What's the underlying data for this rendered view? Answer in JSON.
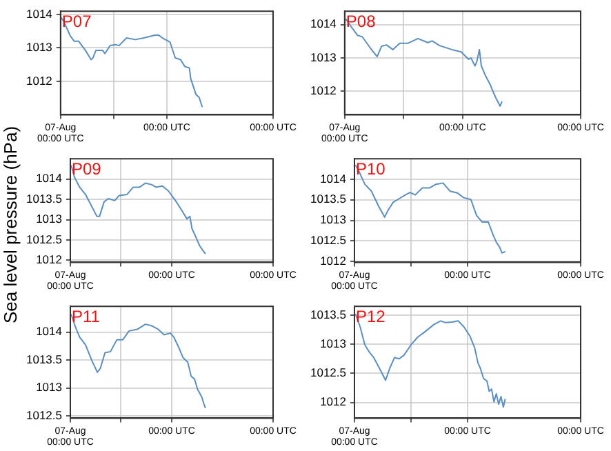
{
  "chart_data": [
    {
      "type": "line",
      "title": "P07",
      "color": "#5b8fc0",
      "grid": true,
      "xlim": [
        "--08-07T00:00",
        "--08-09T00:00"
      ],
      "ylim": [
        1011,
        1014.1
      ],
      "xticks": [
        {
          "value": "--08-07T00:00",
          "label": "07-Aug\n00:00 UTC"
        },
        {
          "value": "--08-07T12:00",
          "label": null
        },
        {
          "value": "--08-08T00:00",
          "label": "00:00 UTC"
        },
        {
          "value": "--08-09T00:00",
          "label": "00:00 UTC"
        }
      ],
      "yticks": [
        1012,
        1013,
        1014
      ],
      "x": [
        "--08-07T00:00",
        "--08-07T00:42",
        "--08-07T02:12",
        "--08-07T03:06",
        "--08-07T04:06",
        "--08-07T05:36",
        "--08-07T06:54",
        "--08-07T07:18",
        "--08-07T08:00",
        "--08-07T09:30",
        "--08-07T10:00",
        "--08-07T11:12",
        "--08-07T12:24",
        "--08-07T13:12",
        "--08-07T14:54",
        "--08-07T16:54",
        "--08-07T18:48",
        "--08-07T21:18",
        "--08-07T22:12",
        "--08-07T23:12",
        "--08-08T00:42",
        "--08-08T01:54",
        "--08-08T03:06",
        "--08-08T04:06",
        "--08-08T05:06",
        "--08-08T05:24",
        "--08-08T06:06",
        "--08-08T06:36",
        "--08-08T07:18",
        "--08-08T08:00"
      ],
      "values": [
        1013.93,
        1013.8,
        1013.36,
        1013.2,
        1013.2,
        1012.93,
        1012.65,
        1012.7,
        1012.93,
        1012.93,
        1012.83,
        1013.07,
        1013.1,
        1013.07,
        1013.3,
        1013.25,
        1013.3,
        1013.38,
        1013.38,
        1013.28,
        1013.18,
        1012.7,
        1012.65,
        1012.44,
        1012.4,
        1012.08,
        1011.8,
        1011.6,
        1011.52,
        1011.23
      ]
    },
    {
      "type": "line",
      "title": "P08",
      "color": "#5b8fc0",
      "grid": true,
      "xlim": [
        "--08-07T00:00",
        "--08-09T00:00"
      ],
      "ylim": [
        1011.3,
        1014.4
      ],
      "xticks": [
        {
          "value": "--08-07T00:00",
          "label": "07-Aug\n00:00 UTC"
        },
        {
          "value": "--08-07T12:00",
          "label": null
        },
        {
          "value": "--08-08T00:00",
          "label": "00:00 UTC"
        },
        {
          "value": "--08-09T00:00",
          "label": "00:00 UTC"
        }
      ],
      "yticks": [
        1012,
        1013,
        1014
      ],
      "x": [
        "--08-07T00:12",
        "--08-07T01:12",
        "--08-07T02:36",
        "--08-07T03:36",
        "--08-07T05:06",
        "--08-07T06:36",
        "--08-07T07:30",
        "--08-07T08:30",
        "--08-07T09:48",
        "--08-07T11:12",
        "--08-07T12:54",
        "--08-07T14:54",
        "--08-07T16:54",
        "--08-07T17:48",
        "--08-07T19:18",
        "--08-07T21:48",
        "--08-07T23:42",
        "--08-08T01:12",
        "--08-08T01:42",
        "--08-08T02:30",
        "--08-08T02:54",
        "--08-08T03:24",
        "--08-08T03:48",
        "--08-08T04:36",
        "--08-08T05:36",
        "--08-08T06:36",
        "--08-08T07:36",
        "--08-08T08:00"
      ],
      "values": [
        1014.17,
        1013.96,
        1013.68,
        1013.63,
        1013.32,
        1013.04,
        1013.35,
        1013.39,
        1013.25,
        1013.44,
        1013.44,
        1013.58,
        1013.46,
        1013.51,
        1013.37,
        1013.25,
        1013.18,
        1012.96,
        1013.0,
        1012.76,
        1012.9,
        1013.25,
        1012.76,
        1012.48,
        1012.2,
        1011.85,
        1011.56,
        1011.7
      ]
    },
    {
      "type": "line",
      "title": "P09",
      "ylabel": "Sea level pressure (hPa)",
      "color": "#5b8fc0",
      "grid": true,
      "xlim": [
        "--08-07T00:00",
        "--08-09T00:00"
      ],
      "ylim": [
        1011.95,
        1014.5
      ],
      "xticks": [
        {
          "value": "--08-07T00:00",
          "label": "07-Aug\n00:00 UTC"
        },
        {
          "value": "--08-07T12:00",
          "label": null
        },
        {
          "value": "--08-08T00:00",
          "label": "00:00 UTC"
        },
        {
          "value": "--08-09T00:00",
          "label": "00:00 UTC"
        }
      ],
      "yticks": [
        1012,
        1012.5,
        1013,
        1013.5,
        1014
      ],
      "x": [
        "--08-07T00:12",
        "--08-07T01:00",
        "--08-07T02:12",
        "--08-07T03:36",
        "--08-07T05:06",
        "--08-07T06:18",
        "--08-07T06:54",
        "--08-07T08:00",
        "--08-07T09:00",
        "--08-07T10:30",
        "--08-07T11:30",
        "--08-07T13:24",
        "--08-07T14:54",
        "--08-07T16:24",
        "--08-07T17:48",
        "--08-07T19:18",
        "--08-07T20:18",
        "--08-07T21:48",
        "--08-07T23:12",
        "--08-08T00:42",
        "--08-08T02:12",
        "--08-08T03:36",
        "--08-08T04:18",
        "--08-08T04:48",
        "--08-08T05:36",
        "--08-08T06:36",
        "--08-08T07:24",
        "--08-08T08:00"
      ],
      "values": [
        1014.34,
        1014.04,
        1013.8,
        1013.62,
        1013.32,
        1013.08,
        1013.08,
        1013.44,
        1013.52,
        1013.47,
        1013.59,
        1013.62,
        1013.8,
        1013.8,
        1013.9,
        1013.86,
        1013.8,
        1013.83,
        1013.71,
        1013.5,
        1013.26,
        1013.02,
        1013.08,
        1012.78,
        1012.6,
        1012.36,
        1012.24,
        1012.16
      ]
    },
    {
      "type": "line",
      "title": "P10",
      "color": "#5b8fc0",
      "grid": true,
      "xlim": [
        "--08-07T00:00",
        "--08-09T00:00"
      ],
      "ylim": [
        1011.98,
        1014.5
      ],
      "xticks": [
        {
          "value": "--08-07T00:00",
          "label": "07-Aug\n00:00 UTC"
        },
        {
          "value": "--08-07T12:00",
          "label": null
        },
        {
          "value": "--08-08T00:00",
          "label": "00:00 UTC"
        },
        {
          "value": "--08-09T00:00",
          "label": "00:00 UTC"
        }
      ],
      "yticks": [
        1012,
        1012.5,
        1013,
        1013.5,
        1014
      ],
      "x": [
        "--08-07T00:12",
        "--08-07T01:00",
        "--08-07T02:12",
        "--08-07T03:36",
        "--08-07T05:06",
        "--08-07T06:24",
        "--08-07T07:06",
        "--08-07T08:12",
        "--08-07T09:30",
        "--08-07T10:48",
        "--08-07T11:48",
        "--08-07T12:54",
        "--08-07T14:24",
        "--08-07T15:54",
        "--08-07T17:18",
        "--08-07T18:48",
        "--08-07T20:18",
        "--08-07T21:48",
        "--08-07T23:12",
        "--08-08T00:42",
        "--08-08T01:54",
        "--08-08T03:06",
        "--08-08T04:24",
        "--08-08T05:24",
        "--08-08T06:06",
        "--08-08T06:48",
        "--08-08T07:18",
        "--08-08T08:00"
      ],
      "values": [
        1014.35,
        1014.18,
        1013.88,
        1013.71,
        1013.35,
        1013.08,
        1013.24,
        1013.44,
        1013.53,
        1013.62,
        1013.68,
        1013.62,
        1013.79,
        1013.79,
        1013.88,
        1013.91,
        1013.71,
        1013.67,
        1013.55,
        1013.51,
        1013.12,
        1012.96,
        1012.96,
        1012.65,
        1012.47,
        1012.35,
        1012.21,
        1012.24
      ]
    },
    {
      "type": "line",
      "title": "P11",
      "color": "#5b8fc0",
      "grid": true,
      "xlim": [
        "--08-07T00:00",
        "--08-09T00:00"
      ],
      "ylim": [
        1012.46,
        1014.46
      ],
      "xticks": [
        {
          "value": "--08-07T00:00",
          "label": "07-Aug\n00:00 UTC"
        },
        {
          "value": "--08-07T12:00",
          "label": null
        },
        {
          "value": "--08-08T00:00",
          "label": "00:00 UTC"
        },
        {
          "value": "--08-09T00:00",
          "label": "00:00 UTC"
        }
      ],
      "yticks": [
        1012.5,
        1013,
        1013.5,
        1014
      ],
      "x": [
        "--08-07T00:12",
        "--08-07T01:12",
        "--08-07T02:12",
        "--08-07T03:36",
        "--08-07T05:06",
        "--08-07T06:24",
        "--08-07T07:06",
        "--08-07T08:12",
        "--08-07T09:30",
        "--08-07T11:00",
        "--08-07T12:24",
        "--08-07T13:54",
        "--08-07T15:54",
        "--08-07T17:48",
        "--08-07T19:18",
        "--08-07T20:48",
        "--08-07T22:12",
        "--08-07T23:42",
        "--08-08T00:30",
        "--08-08T01:42",
        "--08-08T02:42",
        "--08-08T03:48",
        "--08-08T04:36",
        "--08-08T05:24",
        "--08-08T06:06",
        "--08-08T07:06",
        "--08-08T07:36",
        "--08-08T08:00"
      ],
      "values": [
        1014.32,
        1014.09,
        1013.91,
        1013.77,
        1013.49,
        1013.28,
        1013.35,
        1013.63,
        1013.65,
        1013.86,
        1013.86,
        1014.02,
        1014.05,
        1014.14,
        1014.11,
        1014.05,
        1013.95,
        1013.98,
        1013.91,
        1013.72,
        1013.54,
        1013.46,
        1013.21,
        1013.16,
        1012.98,
        1012.84,
        1012.72,
        1012.64
      ]
    },
    {
      "type": "line",
      "title": "P12",
      "color": "#5b8fc0",
      "grid": true,
      "xlim": [
        "--08-07T00:00",
        "--08-09T00:00"
      ],
      "ylim": [
        1011.73,
        1013.65
      ],
      "xticks": [
        {
          "value": "--08-07T00:00",
          "label": "07-Aug\n00:00 UTC"
        },
        {
          "value": "--08-07T12:00",
          "label": null
        },
        {
          "value": "--08-08T00:00",
          "label": "00:00 UTC"
        },
        {
          "value": "--08-09T00:00",
          "label": "00:00 UTC"
        }
      ],
      "yticks": [
        1012,
        1012.5,
        1013,
        1013.5
      ],
      "x": [
        "--08-07T00:12",
        "--08-07T01:12",
        "--08-07T02:12",
        "--08-07T03:06",
        "--08-07T04:06",
        "--08-07T05:36",
        "--08-07T06:36",
        "--08-07T07:30",
        "--08-07T08:30",
        "--08-07T09:30",
        "--08-07T10:30",
        "--08-07T12:00",
        "--08-07T13:24",
        "--08-07T14:54",
        "--08-07T16:54",
        "--08-07T18:18",
        "--08-07T19:18",
        "--08-07T20:48",
        "--08-07T22:00",
        "--08-07T23:12",
        "--08-08T00:30",
        "--08-08T01:30",
        "--08-08T02:12",
        "--08-08T02:42",
        "--08-08T03:24",
        "--08-08T04:06",
        "--08-08T04:36",
        "--08-08T05:06",
        "--08-08T05:36",
        "--08-08T06:06",
        "--08-08T06:36",
        "--08-08T07:06",
        "--08-08T07:36",
        "--08-08T08:00"
      ],
      "values": [
        1013.52,
        1013.3,
        1012.99,
        1012.87,
        1012.77,
        1012.54,
        1012.38,
        1012.59,
        1012.77,
        1012.75,
        1012.81,
        1012.99,
        1013.12,
        1013.21,
        1013.34,
        1013.4,
        1013.37,
        1013.38,
        1013.4,
        1013.3,
        1013.14,
        1012.94,
        1012.68,
        1012.59,
        1012.41,
        1012.37,
        1012.19,
        1012.23,
        1012.01,
        1012.15,
        1011.97,
        1012.1,
        1011.92,
        1012.06
      ]
    }
  ]
}
